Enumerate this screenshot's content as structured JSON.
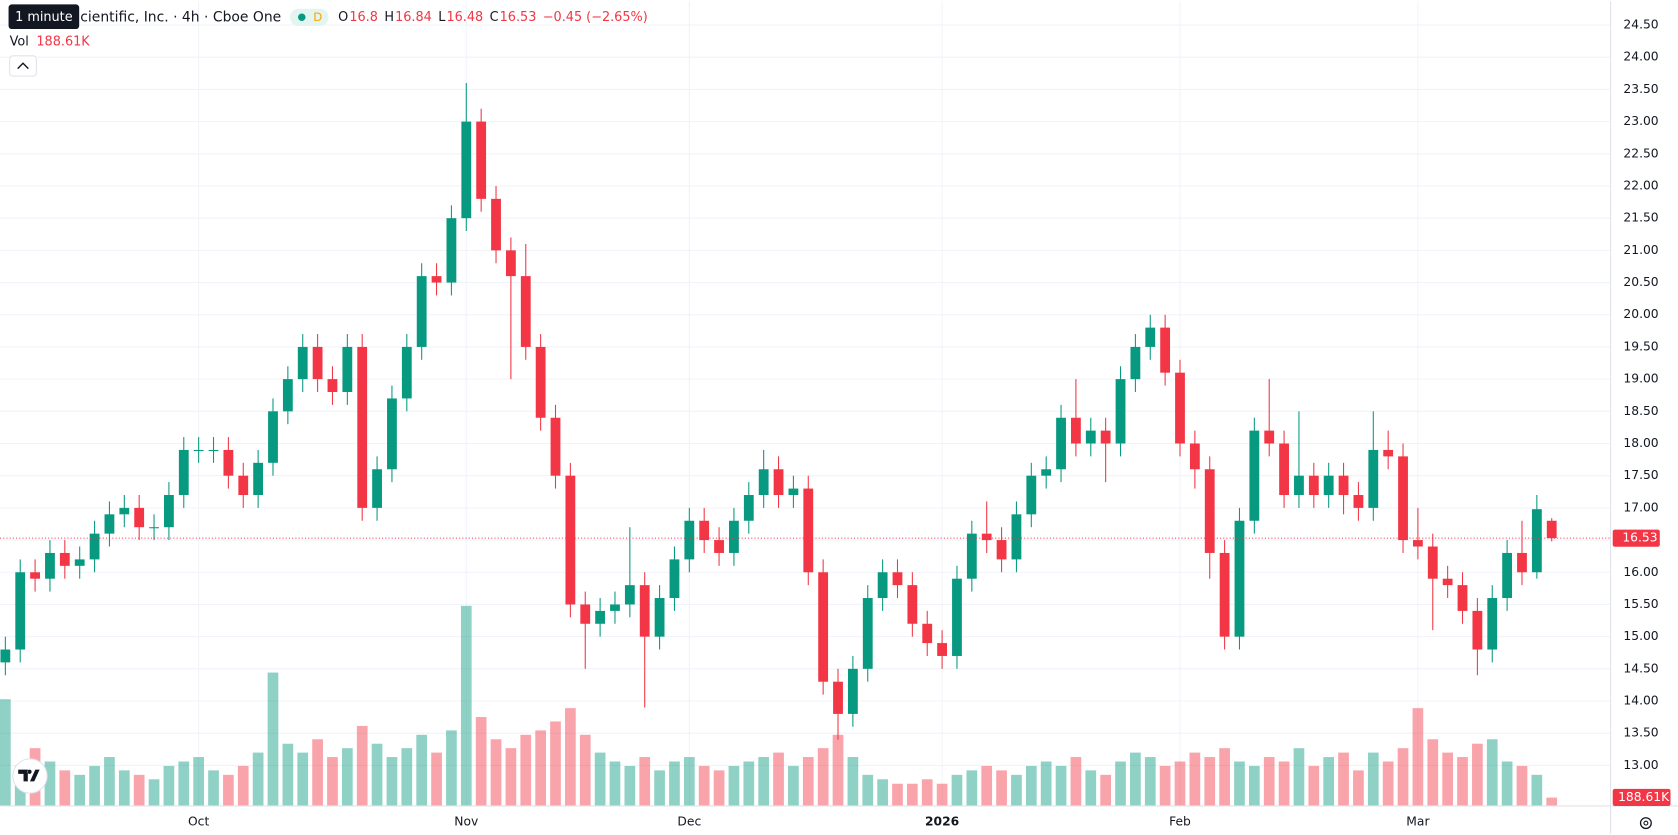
{
  "chart_data": {
    "type": "candlestick",
    "title": "cientific, Inc. · 4h · Cboe One",
    "tooltip": "1 minute",
    "badge": "D",
    "ohlc_labels": [
      "O",
      "H",
      "L",
      "C"
    ],
    "change_label": "−0.45 (−2.65%)",
    "volume_label": "Vol",
    "up_color": "#089981",
    "down_color": "#f23645",
    "open": [
      14.6,
      14.8,
      16.0,
      15.9,
      16.3,
      16.1,
      16.2,
      16.6,
      16.9,
      17.0,
      16.7,
      16.7,
      17.2,
      17.9,
      17.9,
      17.9,
      17.5,
      17.2,
      17.7,
      18.5,
      19.0,
      19.5,
      19.0,
      18.8,
      19.5,
      17.0,
      17.6,
      18.7,
      19.5,
      20.6,
      20.5,
      21.5,
      23.0,
      21.8,
      21.0,
      20.6,
      19.5,
      18.4,
      17.5,
      15.5,
      15.2,
      15.4,
      15.5,
      15.8,
      15.0,
      15.6,
      16.2,
      16.8,
      16.5,
      16.3,
      16.8,
      17.2,
      17.6,
      17.2,
      17.3,
      16.0,
      14.3,
      13.8,
      14.5,
      15.6,
      16.0,
      15.8,
      15.2,
      14.9,
      14.7,
      15.9,
      16.6,
      16.5,
      16.2,
      16.9,
      17.5,
      17.6,
      18.4,
      18.0,
      18.2,
      18.0,
      19.0,
      19.5,
      19.8,
      19.1,
      18.0,
      17.6,
      16.3,
      15.0,
      16.8,
      18.2,
      18.0,
      17.2,
      17.5,
      17.2,
      17.5,
      17.2,
      17.0,
      17.9,
      17.8,
      16.5,
      16.4,
      15.9,
      15.8,
      15.4,
      14.8,
      15.6,
      16.3,
      16.0,
      16.8
    ],
    "high": [
      15.0,
      16.2,
      16.2,
      16.5,
      16.5,
      16.4,
      16.8,
      17.1,
      17.2,
      17.2,
      16.9,
      17.4,
      18.1,
      18.1,
      18.1,
      18.1,
      17.7,
      17.9,
      18.7,
      19.2,
      19.7,
      19.7,
      19.2,
      19.7,
      19.7,
      17.8,
      18.9,
      19.7,
      20.8,
      20.8,
      21.7,
      23.6,
      23.2,
      22.0,
      21.2,
      21.1,
      19.7,
      18.6,
      17.7,
      15.7,
      15.6,
      15.7,
      16.7,
      16.0,
      15.8,
      16.4,
      17.0,
      17.0,
      16.7,
      17.0,
      17.4,
      17.9,
      17.8,
      17.5,
      17.5,
      16.2,
      14.5,
      14.7,
      15.8,
      16.2,
      16.2,
      16.0,
      15.4,
      15.1,
      16.1,
      16.8,
      17.1,
      16.7,
      17.1,
      17.7,
      17.8,
      18.6,
      19.0,
      18.4,
      18.4,
      19.2,
      19.7,
      20.0,
      20.0,
      19.3,
      18.2,
      17.8,
      16.5,
      17.0,
      18.4,
      19.0,
      18.2,
      18.5,
      17.7,
      17.7,
      17.7,
      17.4,
      18.5,
      18.2,
      18.0,
      17.0,
      16.6,
      16.1,
      16.0,
      15.6,
      15.8,
      16.5,
      16.8,
      17.2,
      16.84
    ],
    "low": [
      14.4,
      14.6,
      15.7,
      15.7,
      15.9,
      15.9,
      16.0,
      16.4,
      16.7,
      16.5,
      16.5,
      16.5,
      17.0,
      17.7,
      17.7,
      17.3,
      17.0,
      17.0,
      17.5,
      18.3,
      18.8,
      18.8,
      18.6,
      18.6,
      16.8,
      16.8,
      17.4,
      18.5,
      19.3,
      20.3,
      20.3,
      21.3,
      21.6,
      20.8,
      19.0,
      19.3,
      18.2,
      17.3,
      15.3,
      14.5,
      15.0,
      15.2,
      15.3,
      13.9,
      14.8,
      15.4,
      16.0,
      16.3,
      16.1,
      16.1,
      16.6,
      17.0,
      17.0,
      17.0,
      15.8,
      14.1,
      13.4,
      13.6,
      14.3,
      15.4,
      15.6,
      15.0,
      14.7,
      14.5,
      14.5,
      15.7,
      16.3,
      16.0,
      16.0,
      16.7,
      17.3,
      17.4,
      17.8,
      17.8,
      17.4,
      17.8,
      18.8,
      19.3,
      18.9,
      17.8,
      17.3,
      15.9,
      14.8,
      14.8,
      16.6,
      17.8,
      17.0,
      17.0,
      17.0,
      17.0,
      16.9,
      16.8,
      16.8,
      17.6,
      16.3,
      16.2,
      15.1,
      15.6,
      15.2,
      14.4,
      14.6,
      15.4,
      15.8,
      15.9,
      16.48
    ],
    "close": [
      14.8,
      16.0,
      15.9,
      16.3,
      16.1,
      16.2,
      16.6,
      16.9,
      17.0,
      16.7,
      16.7,
      17.2,
      17.9,
      17.9,
      17.9,
      17.5,
      17.2,
      17.7,
      18.5,
      19.0,
      19.5,
      19.0,
      18.8,
      19.5,
      17.0,
      17.6,
      18.7,
      19.5,
      20.6,
      20.5,
      21.5,
      23.0,
      21.8,
      21.0,
      20.6,
      19.5,
      18.4,
      17.5,
      15.5,
      15.2,
      15.4,
      15.5,
      15.8,
      15.0,
      15.6,
      16.2,
      16.8,
      16.5,
      16.3,
      16.8,
      17.2,
      17.6,
      17.2,
      17.3,
      16.0,
      14.3,
      13.8,
      14.5,
      15.6,
      16.0,
      15.8,
      15.2,
      14.9,
      14.7,
      15.9,
      16.6,
      16.5,
      16.2,
      16.9,
      17.5,
      17.6,
      18.4,
      18.0,
      18.2,
      18.0,
      19.0,
      19.5,
      19.8,
      19.1,
      18.0,
      17.6,
      16.3,
      15.0,
      16.8,
      18.2,
      18.0,
      17.2,
      17.5,
      17.2,
      17.5,
      17.2,
      17.0,
      17.9,
      17.8,
      16.5,
      16.4,
      15.9,
      15.8,
      15.4,
      14.8,
      15.6,
      16.3,
      16.0,
      16.98,
      16.53
    ],
    "volume": [
      2400,
      900,
      1300,
      1000,
      800,
      700,
      900,
      1100,
      800,
      700,
      600,
      900,
      1000,
      1100,
      800,
      700,
      900,
      1200,
      3000,
      1400,
      1200,
      1500,
      1100,
      1300,
      1800,
      1400,
      1100,
      1300,
      1600,
      1200,
      1700,
      4500,
      2000,
      1500,
      1300,
      1600,
      1700,
      1900,
      2200,
      1600,
      1200,
      1000,
      900,
      1100,
      800,
      1000,
      1100,
      900,
      800,
      900,
      1000,
      1100,
      1200,
      900,
      1100,
      1300,
      1600,
      1100,
      700,
      600,
      500,
      500,
      600,
      500,
      700,
      800,
      900,
      800,
      700,
      900,
      1000,
      900,
      1100,
      800,
      700,
      1000,
      1200,
      1100,
      900,
      1000,
      1200,
      1100,
      1300,
      1000,
      900,
      1100,
      1000,
      1300,
      900,
      1100,
      1200,
      800,
      1200,
      1000,
      1300,
      2200,
      1500,
      1200,
      1100,
      1400,
      1500,
      1000,
      900,
      700,
      188.61
    ],
    "volume_labels": {
      "104": "188.61K"
    },
    "ylim": [
      12.37,
      24.87
    ],
    "yticks": [
      {
        "value": 13,
        "label": "13.00"
      },
      {
        "value": 13.5,
        "label": "13.50"
      },
      {
        "value": 14,
        "label": "14.00"
      },
      {
        "value": 14.5,
        "label": "14.50"
      },
      {
        "value": 15,
        "label": "15.00"
      },
      {
        "value": 15.5,
        "label": "15.50"
      },
      {
        "value": 16,
        "label": "16.00"
      },
      {
        "value": 16.5,
        "label": "16.50"
      },
      {
        "value": 17,
        "label": "17.00"
      },
      {
        "value": 17.5,
        "label": "17.50"
      },
      {
        "value": 18,
        "label": "18.00"
      },
      {
        "value": 18.5,
        "label": "18.50"
      },
      {
        "value": 19,
        "label": "19.00"
      },
      {
        "value": 19.5,
        "label": "19.50"
      },
      {
        "value": 20,
        "label": "20.00"
      },
      {
        "value": 20.5,
        "label": "20.50"
      },
      {
        "value": 21,
        "label": "21.00"
      },
      {
        "value": 21.5,
        "label": "21.50"
      },
      {
        "value": 22,
        "label": "22.00"
      },
      {
        "value": 22.5,
        "label": "22.50"
      },
      {
        "value": 23,
        "label": "23.00"
      },
      {
        "value": 23.5,
        "label": "23.50"
      },
      {
        "value": 24,
        "label": "24.00"
      },
      {
        "value": 24.5,
        "label": "24.50"
      }
    ],
    "xticks": [
      {
        "value": 13,
        "label": "Oct"
      },
      {
        "value": 31,
        "label": "Nov"
      },
      {
        "value": 46,
        "label": "Dec"
      },
      {
        "value": 63,
        "label": "2026"
      },
      {
        "value": 79,
        "label": "Feb"
      },
      {
        "value": 95,
        "label": "Mar"
      }
    ],
    "grid": true
  }
}
